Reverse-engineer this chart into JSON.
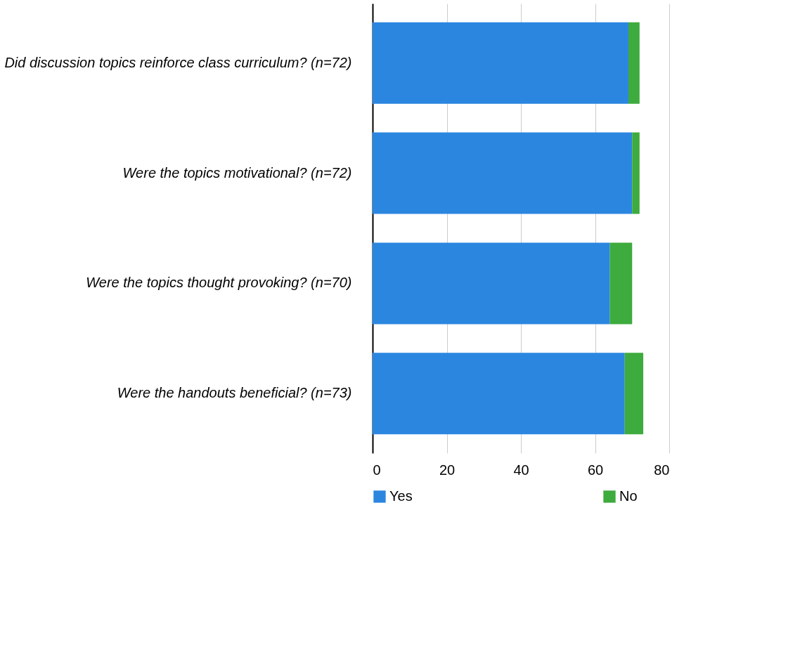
{
  "chart_data": {
    "type": "bar",
    "orientation": "horizontal",
    "stacked": true,
    "categories": [
      "Did discussion topics reinforce class curriculum? (n=72)",
      "Were the topics motivational? (n=72)",
      "Were the topics thought provoking? (n=70)",
      "Were the handouts beneficial? (n=73)"
    ],
    "series": [
      {
        "name": "Yes",
        "color": "#2b86e0",
        "values": [
          69,
          70,
          64,
          68
        ]
      },
      {
        "name": "No",
        "color": "#3dab3d",
        "values": [
          3,
          2,
          6,
          5
        ]
      }
    ],
    "xlim": [
      0,
      80
    ],
    "xticks": [
      0,
      20,
      40,
      60,
      80
    ],
    "grid": "x",
    "legend": "bottom"
  }
}
